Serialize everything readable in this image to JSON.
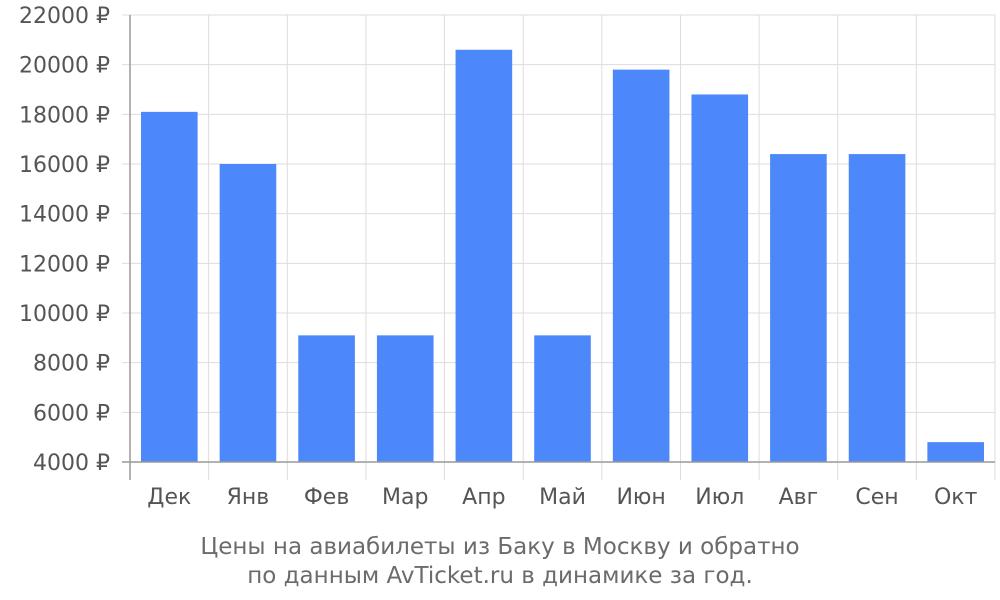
{
  "caption": {
    "line1": "Цены на авиабилеты из Баку в Москву и обратно",
    "line2": "по данным AvTicket.ru в динамике за год."
  },
  "chart_data": {
    "type": "bar",
    "categories": [
      "Дек",
      "Янв",
      "Фев",
      "Мар",
      "Апр",
      "Май",
      "Июн",
      "Июл",
      "Авг",
      "Сен",
      "Окт"
    ],
    "values": [
      18100,
      16000,
      9100,
      9100,
      20600,
      9100,
      19800,
      18800,
      16400,
      16400,
      4800
    ],
    "ylim": [
      4000,
      22000
    ],
    "yticks": [
      4000,
      6000,
      8000,
      10000,
      12000,
      14000,
      16000,
      18000,
      20000,
      22000
    ],
    "ytick_suffix": " ₽",
    "grid": true,
    "bar_color": "#4d88fa",
    "grid_color": "#dddddd",
    "axis_color": "#999999"
  }
}
